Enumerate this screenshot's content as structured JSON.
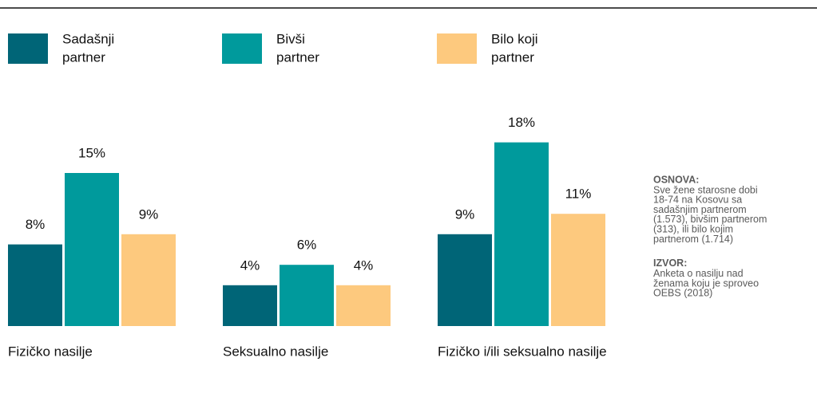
{
  "chart_data": {
    "type": "bar",
    "categories": [
      "Fizičko nasilje",
      "Seksualno nasilje",
      "Fizičko i/ili seksualno nasilje"
    ],
    "series": [
      {
        "name": [
          "Sadašnji",
          "partner"
        ],
        "color": "#006577",
        "values": [
          8,
          4,
          9
        ],
        "value_labels": [
          "8%",
          "4%",
          "9%"
        ]
      },
      {
        "name": [
          "Bivši",
          "partner"
        ],
        "color": "#009a9c",
        "values": [
          15,
          6,
          18
        ],
        "value_labels": [
          "15%",
          "6%",
          "18%"
        ]
      },
      {
        "name": [
          "Bilo koji",
          "partner"
        ],
        "color": "#fdc97e",
        "values": [
          9,
          4,
          11
        ],
        "value_labels": [
          "9%",
          "4%",
          "11%"
        ]
      }
    ],
    "notes": [
      {
        "title": "OSNOVA:",
        "lines": [
          "Sve žene starosne dobi",
          "18-74 na Kosovu sa",
          "sadašnjim partnerom",
          "(1.573), bivšim partnerom",
          "(313), ili bilo kojim",
          "partnerom (1.714)"
        ]
      },
      {
        "title": "IZVOR:",
        "lines": [
          "Anketa  o nasilju nad",
          "ženama koju je sproveo",
          "OEBS (2018)"
        ]
      }
    ]
  }
}
